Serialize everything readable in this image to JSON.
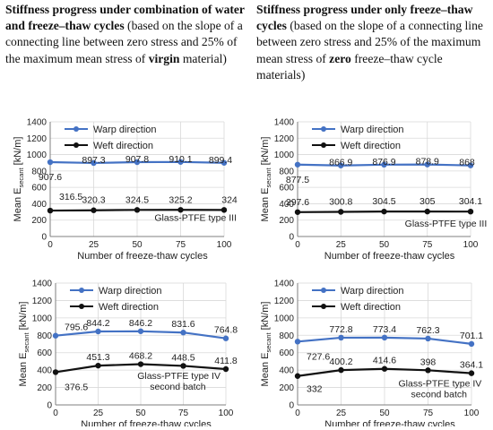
{
  "captions": {
    "left": {
      "bold": "Stiffness progress under combination of water and freeze–thaw cycles",
      "normal1": " (based on the slope of a connecting line between zero stress and 25% of the maximum mean stress of ",
      "bold2": "virgin",
      "normal2": " material)"
    },
    "right": {
      "bold": "Stiffness progress under only freeze–thaw cycles",
      "normal1": " (based on the slope of a connecting line between zero stress and 25% of the maximum mean stress of ",
      "bold2": "zero",
      "normal2": " freeze–thaw cycle materials)"
    }
  },
  "colors": {
    "warp": "#4472C4",
    "weft": "#111111",
    "grid": "#d9d9d9",
    "axis": "#7f7f7f"
  },
  "chart_data": [
    {
      "type": "line",
      "title": "",
      "ylabel_main": "Mean E",
      "ylabel_sub": "secant",
      "ylabel_unit": " [kN/m]",
      "xlabel": "Number of freeze-thaw cycles",
      "x": [
        0,
        25,
        50,
        75,
        100
      ],
      "xlim": [
        0,
        100
      ],
      "ylim": [
        0,
        1400
      ],
      "yticks": [
        0,
        200,
        400,
        600,
        800,
        1000,
        1200,
        1400
      ],
      "xticks": [
        0,
        25,
        50,
        75,
        100
      ],
      "grid": true,
      "legend_position": "top",
      "annotation_lines": [
        "Glass-PTFE type III"
      ],
      "series": [
        {
          "name": "Warp direction",
          "values": [
            907.6,
            897.3,
            907.8,
            910.1,
            899.4
          ],
          "labels": [
            "907.6",
            "897.3",
            "907.8",
            "910.1",
            "899.4"
          ]
        },
        {
          "name": "Weft direction",
          "values": [
            316.5,
            320.3,
            324.5,
            325.2,
            324
          ],
          "labels": [
            "316.5",
            "320.3",
            "324.5",
            "325.2",
            "324"
          ]
        }
      ]
    },
    {
      "type": "line",
      "title": "",
      "ylabel_main": "Mean E",
      "ylabel_sub": "secant",
      "ylabel_unit": " [kN/m]",
      "xlabel": "Number of freeze-thaw cycles",
      "x": [
        0,
        25,
        50,
        75,
        100
      ],
      "xlim": [
        0,
        100
      ],
      "ylim": [
        0,
        1400
      ],
      "yticks": [
        0,
        200,
        400,
        600,
        800,
        1000,
        1200,
        1400
      ],
      "xticks": [
        0,
        25,
        50,
        75,
        100
      ],
      "grid": true,
      "legend_position": "top",
      "annotation_lines": [
        "Glass-PTFE type III"
      ],
      "series": [
        {
          "name": "Warp direction",
          "values": [
            877.5,
            866.9,
            876.9,
            878.9,
            868
          ],
          "labels": [
            "877.5",
            "866.9",
            "876.9",
            "878.9",
            "868"
          ]
        },
        {
          "name": "Weft direction",
          "values": [
            297.6,
            300.8,
            304.5,
            305,
            304.1
          ],
          "labels": [
            "297.6",
            "300.8",
            "304.5",
            "305",
            "304.1"
          ]
        }
      ]
    },
    {
      "type": "line",
      "title": "",
      "ylabel_main": "Mean E",
      "ylabel_sub": "secant",
      "ylabel_unit": " [kN/m]",
      "xlabel": "Number of freeze-thaw cycles",
      "x": [
        0,
        25,
        50,
        75,
        100
      ],
      "xlim": [
        0,
        100
      ],
      "ylim": [
        0,
        1400
      ],
      "yticks": [
        0,
        200,
        400,
        600,
        800,
        1000,
        1200,
        1400
      ],
      "xticks": [
        0,
        25,
        50,
        75,
        100
      ],
      "grid": true,
      "legend_position": "top",
      "annotation_lines": [
        "Glass-PTFE type IV",
        "second batch"
      ],
      "series": [
        {
          "name": "Warp direction",
          "values": [
            795.6,
            844.2,
            846.2,
            831.6,
            764.8
          ],
          "labels": [
            "795.6",
            "844.2",
            "846.2",
            "831.6",
            "764.8"
          ]
        },
        {
          "name": "Weft direction",
          "values": [
            376.5,
            451.3,
            468.2,
            448.5,
            411.8
          ],
          "labels": [
            "376.5",
            "451.3",
            "468.2",
            "448.5",
            "411.8"
          ]
        }
      ]
    },
    {
      "type": "line",
      "title": "",
      "ylabel_main": "Mean E",
      "ylabel_sub": "secant",
      "ylabel_unit": " [kN/m]",
      "xlabel": "Number of freeze-thaw cycles",
      "x": [
        0,
        25,
        50,
        75,
        100
      ],
      "xlim": [
        0,
        100
      ],
      "ylim": [
        0,
        1400
      ],
      "yticks": [
        0,
        200,
        400,
        600,
        800,
        1000,
        1200,
        1400
      ],
      "xticks": [
        0,
        25,
        50,
        75,
        100
      ],
      "grid": true,
      "legend_position": "top",
      "annotation_lines": [
        "Glass-PTFE type IV",
        "second batch"
      ],
      "series": [
        {
          "name": "Warp direction",
          "values": [
            727.6,
            772.8,
            773.4,
            762.3,
            701.1
          ],
          "labels": [
            "727.6",
            "772.8",
            "773.4",
            "762.3",
            "701.1"
          ]
        },
        {
          "name": "Weft direction",
          "values": [
            332,
            400.2,
            414.6,
            398,
            364.1
          ],
          "labels": [
            "332",
            "400.2",
            "414.6",
            "398",
            "364.1"
          ]
        }
      ]
    }
  ]
}
